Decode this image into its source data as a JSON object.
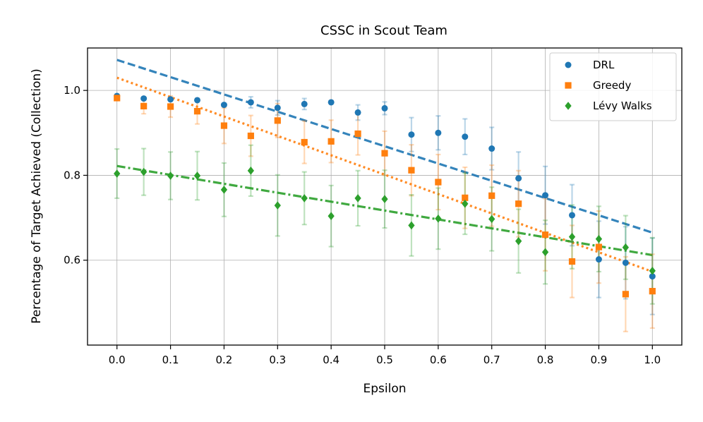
{
  "chart_data": {
    "type": "scatter",
    "title": "CSSC in Scout Team",
    "xlabel": "Epsilon",
    "ylabel": "Percentage of Target Achieved (Collection)",
    "xlim": [
      -0.055,
      1.055
    ],
    "ylim": [
      0.4,
      1.1
    ],
    "xticks": [
      0.0,
      0.1,
      0.2,
      0.3,
      0.4,
      0.5,
      0.6,
      0.7,
      0.8,
      0.9,
      1.0
    ],
    "xtick_labels": [
      "0.0",
      "0.1",
      "0.2",
      "0.3",
      "0.4",
      "0.5",
      "0.6",
      "0.7",
      "0.8",
      "0.9",
      "1.0"
    ],
    "yticks": [
      0.6,
      0.8,
      1.0
    ],
    "ytick_labels": [
      "0.6",
      "0.8",
      "1.0"
    ],
    "grid": true,
    "legend_position": "top-right",
    "x": [
      0.0,
      0.05,
      0.1,
      0.15,
      0.2,
      0.25,
      0.3,
      0.35,
      0.4,
      0.45,
      0.5,
      0.55,
      0.6,
      0.65,
      0.7,
      0.75,
      0.8,
      0.85,
      0.9,
      0.95,
      1.0
    ],
    "series": [
      {
        "name": "DRL",
        "color": "#1f77b4",
        "marker": "circle",
        "values": [
          0.987,
          0.981,
          0.979,
          0.977,
          0.966,
          0.972,
          0.959,
          0.968,
          0.972,
          0.948,
          0.958,
          0.896,
          0.9,
          0.891,
          0.863,
          0.793,
          0.753,
          0.706,
          0.602,
          0.594,
          0.562
        ],
        "errors": [
          0.0,
          0.0,
          0.0,
          0.0,
          0.0,
          0.013,
          0.017,
          0.013,
          0.0,
          0.018,
          0.015,
          0.04,
          0.04,
          0.042,
          0.05,
          0.062,
          0.068,
          0.072,
          0.09,
          0.085,
          0.09
        ],
        "trend": {
          "style": "dashed",
          "start": [
            0.0,
            1.072
          ],
          "end": [
            1.0,
            0.665
          ]
        }
      },
      {
        "name": "Greedy",
        "color": "#ff7f0e",
        "marker": "square",
        "values": [
          0.982,
          0.963,
          0.962,
          0.951,
          0.917,
          0.893,
          0.929,
          0.878,
          0.88,
          0.898,
          0.852,
          0.812,
          0.784,
          0.747,
          0.752,
          0.733,
          0.66,
          0.597,
          0.631,
          0.52,
          0.527
        ],
        "errors": [
          0.0,
          0.018,
          0.025,
          0.03,
          0.042,
          0.048,
          0.04,
          0.05,
          0.05,
          0.05,
          0.052,
          0.06,
          0.065,
          0.072,
          0.072,
          0.078,
          0.085,
          0.085,
          0.085,
          0.088,
          0.087
        ],
        "trend": {
          "style": "dotted",
          "start": [
            0.0,
            1.03
          ],
          "end": [
            1.0,
            0.573
          ]
        }
      },
      {
        "name": "Lévy Walks",
        "color": "#2ca02c",
        "marker": "diamond",
        "values": [
          0.804,
          0.808,
          0.799,
          0.799,
          0.766,
          0.811,
          0.729,
          0.746,
          0.704,
          0.746,
          0.744,
          0.682,
          0.698,
          0.733,
          0.697,
          0.645,
          0.619,
          0.655,
          0.65,
          0.63,
          0.575
        ],
        "errors": [
          0.058,
          0.055,
          0.056,
          0.057,
          0.063,
          0.06,
          0.072,
          0.062,
          0.072,
          0.065,
          0.068,
          0.072,
          0.072,
          0.072,
          0.075,
          0.075,
          0.075,
          0.075,
          0.077,
          0.075,
          0.078
        ],
        "trend": {
          "style": "dashdot",
          "start": [
            0.0,
            0.822
          ],
          "end": [
            1.0,
            0.612
          ]
        }
      }
    ]
  }
}
